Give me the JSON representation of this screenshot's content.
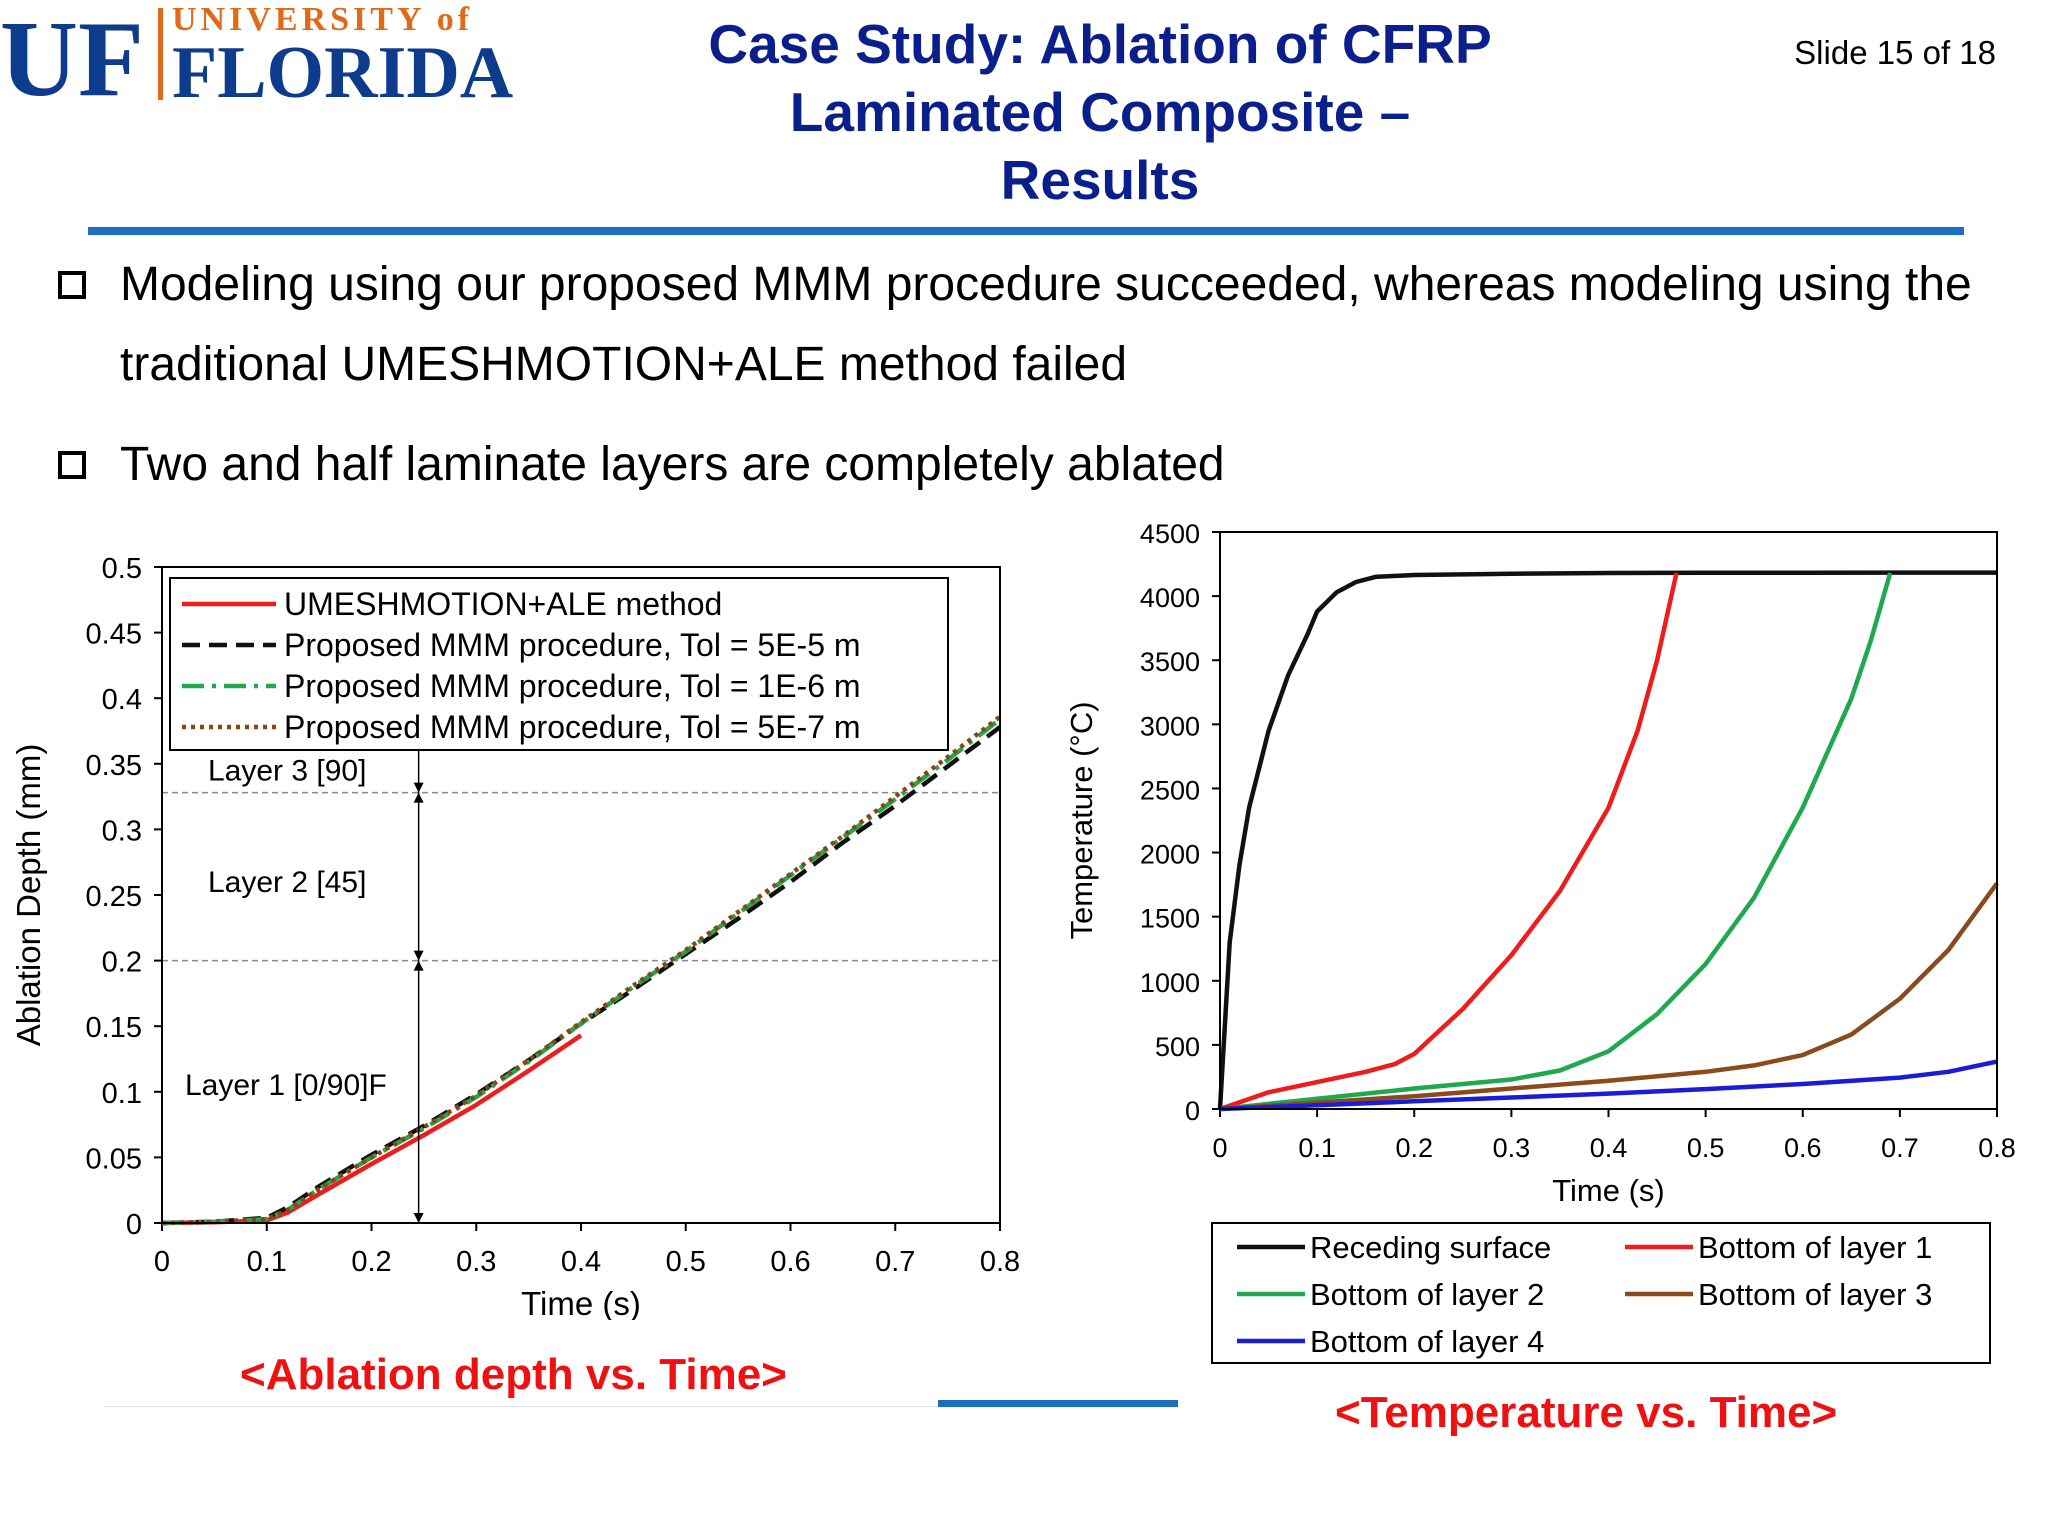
{
  "logo": {
    "mark": "UF",
    "line1": "UNIVERSITY of",
    "line2": "FLORIDA",
    "colors": {
      "blue": "#0d3c8c",
      "orange": "#e06a18"
    }
  },
  "header": {
    "title": "Case Study: Ablation of CFRP\nLaminated Composite –\nResults",
    "slide_number": "Slide 15 of 18"
  },
  "bullets": [
    {
      "icon": "checkbox-icon",
      "text": "Modeling using our proposed MMM procedure succeeded, whereas modeling using the traditional UMESHMOTION+ALE method failed"
    },
    {
      "icon": "checkbox-icon",
      "text": "Two and half laminate layers are completely ablated"
    }
  ],
  "captions": {
    "left": "<Ablation depth vs. Time>",
    "right": "<Temperature vs. Time>"
  },
  "chart_data": [
    {
      "type": "line",
      "xlabel": "Time (s)",
      "ylabel": "Ablation Depth (mm)",
      "xlim": [
        0,
        0.8
      ],
      "ylim": [
        0,
        0.5
      ],
      "xticks": [
        "0",
        "0.1",
        "0.2",
        "0.3",
        "0.4",
        "0.5",
        "0.6",
        "0.7",
        "0.8"
      ],
      "yticks": [
        "0",
        "0.05",
        "0.1",
        "0.15",
        "0.2",
        "0.25",
        "0.3",
        "0.35",
        "0.4",
        "0.45",
        "0.5"
      ],
      "legend_position": "top-left",
      "grid": false,
      "reference_lines": [
        {
          "axis": "y",
          "value": 0.2
        },
        {
          "axis": "y",
          "value": 0.328
        }
      ],
      "annotations": [
        "Layer 3 [90]",
        "Layer 2 [45]",
        "Layer 1 [0/90]F"
      ],
      "series": [
        {
          "name": "UMESHMOTION+ALE method",
          "color": "#ee1c1c",
          "style": "solid",
          "x": [
            0,
            0.05,
            0.1,
            0.12,
            0.15,
            0.2,
            0.25,
            0.3,
            0.35,
            0.4
          ],
          "y": [
            0,
            0.0005,
            0.002,
            0.008,
            0.022,
            0.045,
            0.067,
            0.09,
            0.116,
            0.143
          ]
        },
        {
          "name": "Proposed MMM procedure, Tol = 5E-5 m",
          "color": "#111111",
          "style": "dashed",
          "x": [
            0,
            0.05,
            0.1,
            0.12,
            0.15,
            0.2,
            0.25,
            0.3,
            0.35,
            0.4,
            0.45,
            0.5,
            0.55,
            0.6,
            0.65,
            0.7,
            0.75,
            0.8
          ],
          "y": [
            0,
            0.001,
            0.004,
            0.012,
            0.028,
            0.052,
            0.074,
            0.098,
            0.124,
            0.152,
            0.178,
            0.205,
            0.232,
            0.26,
            0.29,
            0.318,
            0.348,
            0.378
          ]
        },
        {
          "name": "Proposed MMM procedure, Tol = 1E-6 m",
          "color": "#20a84e",
          "style": "dash-dot",
          "x": [
            0,
            0.05,
            0.1,
            0.12,
            0.15,
            0.2,
            0.25,
            0.3,
            0.35,
            0.4,
            0.45,
            0.5,
            0.55,
            0.6,
            0.65,
            0.7,
            0.75,
            0.8
          ],
          "y": [
            0,
            0.001,
            0.003,
            0.01,
            0.026,
            0.05,
            0.072,
            0.096,
            0.123,
            0.152,
            0.18,
            0.207,
            0.236,
            0.265,
            0.294,
            0.323,
            0.353,
            0.384
          ]
        },
        {
          "name": "Proposed MMM procedure, Tol = 5E-7 m",
          "color": "#8b4513",
          "style": "dotted",
          "x": [
            0,
            0.05,
            0.1,
            0.12,
            0.15,
            0.2,
            0.25,
            0.3,
            0.35,
            0.4,
            0.45,
            0.5,
            0.55,
            0.6,
            0.65,
            0.7,
            0.75,
            0.8
          ],
          "y": [
            0,
            0.001,
            0.003,
            0.01,
            0.026,
            0.05,
            0.073,
            0.097,
            0.124,
            0.153,
            0.181,
            0.208,
            0.237,
            0.266,
            0.295,
            0.325,
            0.355,
            0.386
          ]
        }
      ]
    },
    {
      "type": "line",
      "xlabel": "Time (s)",
      "ylabel": "Temperature (°C)",
      "xlim": [
        0,
        0.8
      ],
      "ylim": [
        0,
        4500
      ],
      "xticks": [
        "0",
        "0.1",
        "0.2",
        "0.3",
        "0.4",
        "0.5",
        "0.6",
        "0.7",
        "0.8"
      ],
      "yticks": [
        "0",
        "500",
        "1000",
        "1500",
        "2000",
        "2500",
        "3000",
        "3500",
        "4000",
        "4500"
      ],
      "legend_position": "bottom",
      "grid": false,
      "series": [
        {
          "name": "Receding surface",
          "color": "#111111",
          "x": [
            0,
            0.01,
            0.02,
            0.03,
            0.05,
            0.07,
            0.09,
            0.1,
            0.12,
            0.14,
            0.16,
            0.2,
            0.3,
            0.4,
            0.5,
            0.6,
            0.7,
            0.8
          ],
          "y": [
            0,
            1300,
            1900,
            2350,
            2950,
            3380,
            3700,
            3880,
            4030,
            4110,
            4150,
            4165,
            4175,
            4180,
            4182,
            4182,
            4183,
            4183
          ]
        },
        {
          "name": "Bottom of layer 1",
          "color": "#ee1c1c",
          "x": [
            0,
            0.05,
            0.1,
            0.15,
            0.18,
            0.2,
            0.25,
            0.3,
            0.35,
            0.4,
            0.43,
            0.45,
            0.47
          ],
          "y": [
            0,
            130,
            210,
            290,
            350,
            430,
            780,
            1200,
            1700,
            2350,
            2950,
            3500,
            4180
          ]
        },
        {
          "name": "Bottom of layer 2",
          "color": "#20a84e",
          "x": [
            0,
            0.1,
            0.2,
            0.3,
            0.35,
            0.4,
            0.45,
            0.5,
            0.55,
            0.6,
            0.65,
            0.67,
            0.69
          ],
          "y": [
            0,
            80,
            160,
            230,
            300,
            450,
            740,
            1130,
            1650,
            2350,
            3200,
            3650,
            4180
          ]
        },
        {
          "name": "Bottom of layer 3",
          "color": "#8b4a1c",
          "x": [
            0,
            0.1,
            0.2,
            0.3,
            0.4,
            0.5,
            0.55,
            0.6,
            0.65,
            0.7,
            0.75,
            0.8
          ],
          "y": [
            0,
            50,
            100,
            160,
            220,
            290,
            340,
            420,
            580,
            860,
            1240,
            1760
          ]
        },
        {
          "name": "Bottom of layer 4",
          "color": "#1c1cd8",
          "x": [
            0,
            0.1,
            0.2,
            0.3,
            0.4,
            0.5,
            0.6,
            0.7,
            0.75,
            0.8
          ],
          "y": [
            0,
            30,
            60,
            90,
            120,
            155,
            195,
            245,
            290,
            370
          ]
        }
      ]
    }
  ]
}
